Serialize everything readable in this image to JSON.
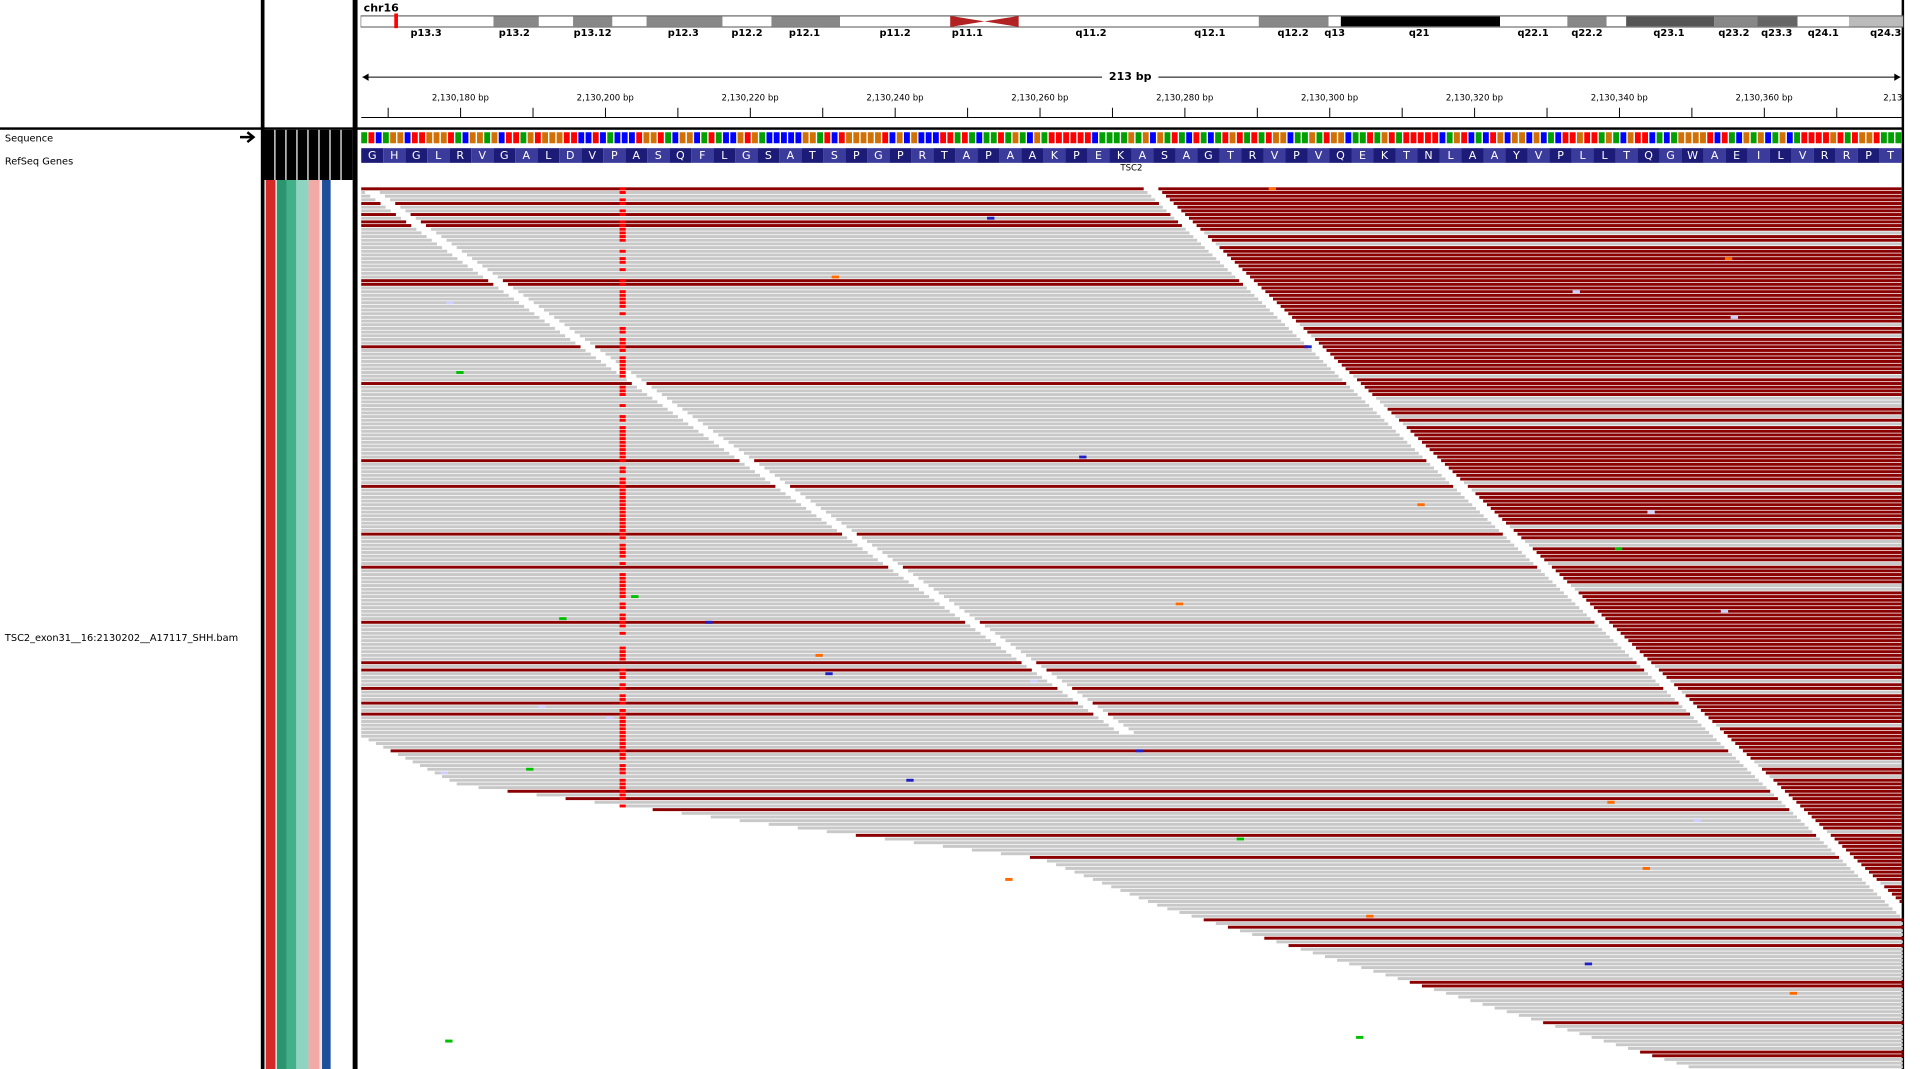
{
  "chromosome": "chr16",
  "bands": [
    "p13.3",
    "p13.2",
    "p13.12",
    "p12.3",
    "p12.2",
    "p12.1",
    "p11.2",
    "p11.1",
    "q11.2",
    "q12.1",
    "q12.2",
    "q13",
    "q21",
    "q22.1",
    "q22.2",
    "q23.1",
    "q23.2",
    "q23.3",
    "q24.1",
    "q24.3"
  ],
  "ruler": {
    "span": "213 bp",
    "ticks": [
      "2,130,180 bp",
      "2,130,200 bp",
      "2,130,220 bp",
      "2,130,240 bp",
      "2,130,260 bp",
      "2,130,280 bp",
      "2,130,300 bp",
      "2,130,320 bp",
      "2,130,340 bp",
      "2,130,360 bp",
      "2,13"
    ]
  },
  "tracks": {
    "sequence": "Sequence",
    "refseq": "RefSeq Genes",
    "gene": "TSC2",
    "amino_acids": [
      "G",
      "H",
      "G",
      "L",
      "R",
      "V",
      "G",
      "A",
      "L",
      "D",
      "V",
      "P",
      "A",
      "S",
      "Q",
      "F",
      "L",
      "G",
      "S",
      "A",
      "T",
      "S",
      "P",
      "G",
      "P",
      "R",
      "T",
      "A",
      "P",
      "A",
      "A",
      "K",
      "P",
      "E",
      "K",
      "A",
      "S",
      "A",
      "G",
      "T",
      "R",
      "V",
      "P",
      "V",
      "Q",
      "E",
      "K",
      "T",
      "N",
      "L",
      "A",
      "A",
      "Y",
      "V",
      "P",
      "L",
      "L",
      "T",
      "Q",
      "G",
      "W",
      "A",
      "E",
      "I",
      "L",
      "V",
      "R",
      "R",
      "P",
      "T"
    ]
  },
  "alignment": {
    "name": "TSC2_exon31__16:2130202__A17117_SHH.bam"
  }
}
